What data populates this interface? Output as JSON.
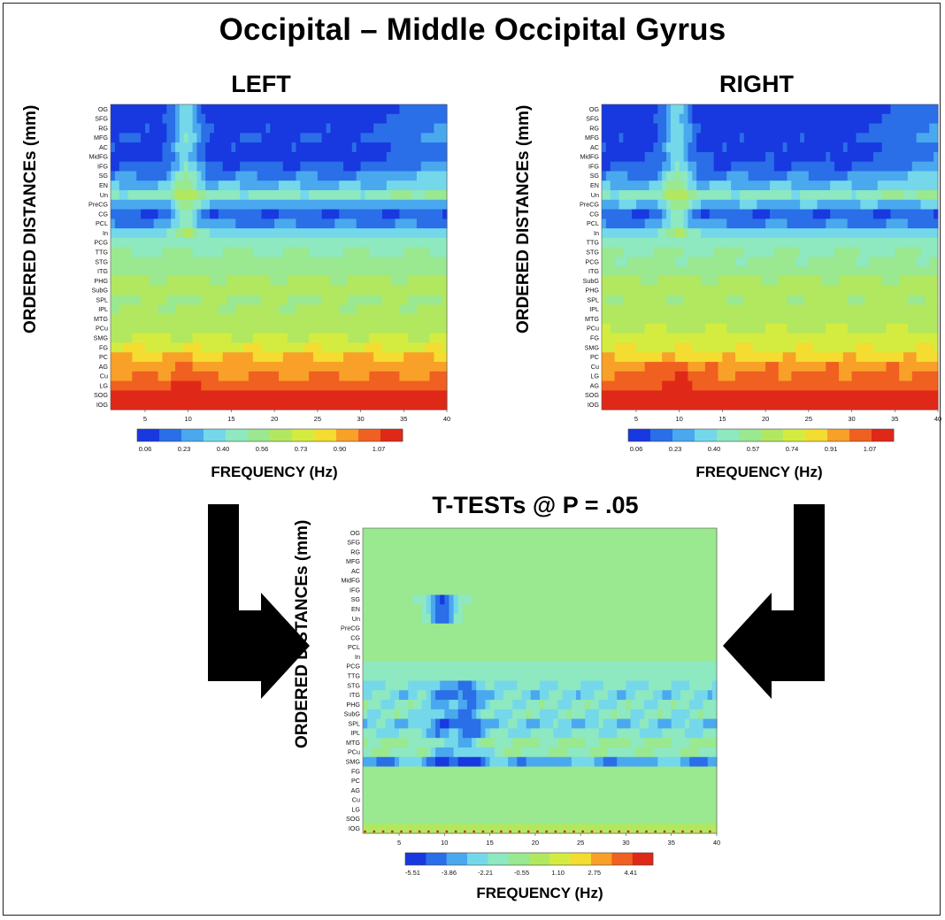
{
  "title": "Occipital – Middle Occipital Gyrus",
  "colors": {
    "scale": [
      "#1838e0",
      "#2a6ee8",
      "#4aa8ee",
      "#74d8ea",
      "#8ee8c0",
      "#9ae890",
      "#b2e860",
      "#d4ec40",
      "#f4dc30",
      "#f8a028",
      "#f06020",
      "#e02818"
    ],
    "arrow": "#000000",
    "frame": "#222222"
  },
  "chart_data": [
    {
      "type": "heatmap",
      "title": "LEFT",
      "xlabel": "FREQUENCY (Hz)",
      "ylabel": "ORDERED DISTANCEs (mm)",
      "xlim": [
        1,
        40
      ],
      "x_ticks": [
        "5",
        "10",
        "15",
        "20",
        "25",
        "30",
        "35",
        "40"
      ],
      "y_categories": [
        "OG",
        "SFG",
        "RG",
        "MFG",
        "AC",
        "MidFG",
        "IFG",
        "SG",
        "EN",
        "Un",
        "PreCG",
        "CG",
        "PCL",
        "In",
        "PCG",
        "TTG",
        "STG",
        "ITG",
        "PHG",
        "SubG",
        "SPL",
        "IPL",
        "MTG",
        "PCu",
        "SMG",
        "FG",
        "PC",
        "AG",
        "Cu",
        "LG",
        "SOG",
        "IOG"
      ],
      "colorbar_ticks": [
        "0.06",
        "0.23",
        "0.40",
        "0.56",
        "0.73",
        "0.90",
        "1.07"
      ],
      "row_levels": [
        0.1,
        0.11,
        0.12,
        0.13,
        0.12,
        0.11,
        0.16,
        0.22,
        0.3,
        0.42,
        0.28,
        0.16,
        0.22,
        0.36,
        0.44,
        0.48,
        0.52,
        0.54,
        0.58,
        0.6,
        0.56,
        0.58,
        0.6,
        0.62,
        0.66,
        0.72,
        0.82,
        0.86,
        0.9,
        0.96,
        1.03,
        1.07
      ]
    },
    {
      "type": "heatmap",
      "title": "RIGHT",
      "xlabel": "FREQUENCY (Hz)",
      "ylabel": "ORDERED DISTANCEs (mm)",
      "xlim": [
        1,
        40
      ],
      "x_ticks": [
        "5",
        "10",
        "15",
        "20",
        "25",
        "30",
        "35",
        "40"
      ],
      "y_categories": [
        "OG",
        "SFG",
        "RG",
        "MFG",
        "AC",
        "MidFG",
        "IFG",
        "SG",
        "EN",
        "Un",
        "PreCG",
        "CG",
        "PCL",
        "In",
        "TTG",
        "STG",
        "PCG",
        "ITG",
        "SubG",
        "PHG",
        "SPL",
        "IPL",
        "MTG",
        "PCu",
        "FG",
        "SMG",
        "PC",
        "Cu",
        "LG",
        "AG",
        "SOG",
        "IOG"
      ],
      "colorbar_ticks": [
        "0.06",
        "0.23",
        "0.40",
        "0.57",
        "0.74",
        "0.91",
        "1.07"
      ],
      "row_levels": [
        0.1,
        0.1,
        0.11,
        0.12,
        0.12,
        0.12,
        0.16,
        0.22,
        0.3,
        0.42,
        0.3,
        0.16,
        0.22,
        0.36,
        0.44,
        0.48,
        0.5,
        0.54,
        0.58,
        0.6,
        0.58,
        0.6,
        0.62,
        0.64,
        0.68,
        0.72,
        0.8,
        0.88,
        0.92,
        0.96,
        1.03,
        1.07
      ]
    },
    {
      "type": "heatmap",
      "title": "T-TESTs @ P = .05",
      "xlabel": "FREQUENCY (Hz)",
      "ylabel": "ORDERED DISTANCEs (mm)",
      "xlim": [
        1,
        40
      ],
      "x_ticks": [
        "5",
        "10",
        "15",
        "20",
        "25",
        "30",
        "35",
        "40"
      ],
      "y_categories": [
        "OG",
        "SFG",
        "RG",
        "MFG",
        "AC",
        "MidFG",
        "IFG",
        "SG",
        "EN",
        "Un",
        "PreCG",
        "CG",
        "PCL",
        "In",
        "PCG",
        "TTG",
        "STG",
        "ITG",
        "PHG",
        "SubG",
        "SPL",
        "IPL",
        "MTG",
        "PCu",
        "SMG",
        "FG",
        "PC",
        "AG",
        "Cu",
        "LG",
        "SOG",
        "IOG"
      ],
      "colorbar_ticks": [
        "-5.51",
        "-3.86",
        "-2.21",
        "-0.55",
        "1.10",
        "2.75",
        "4.41"
      ],
      "row_levels": [
        0.45,
        0.45,
        0.45,
        0.45,
        0.45,
        0.45,
        0.45,
        0.42,
        0.44,
        0.45,
        0.45,
        0.45,
        0.45,
        0.42,
        0.4,
        0.38,
        0.34,
        0.3,
        0.36,
        0.36,
        0.28,
        0.34,
        0.44,
        0.4,
        0.22,
        0.42,
        0.45,
        0.45,
        0.45,
        0.45,
        0.45,
        0.52
      ]
    }
  ]
}
